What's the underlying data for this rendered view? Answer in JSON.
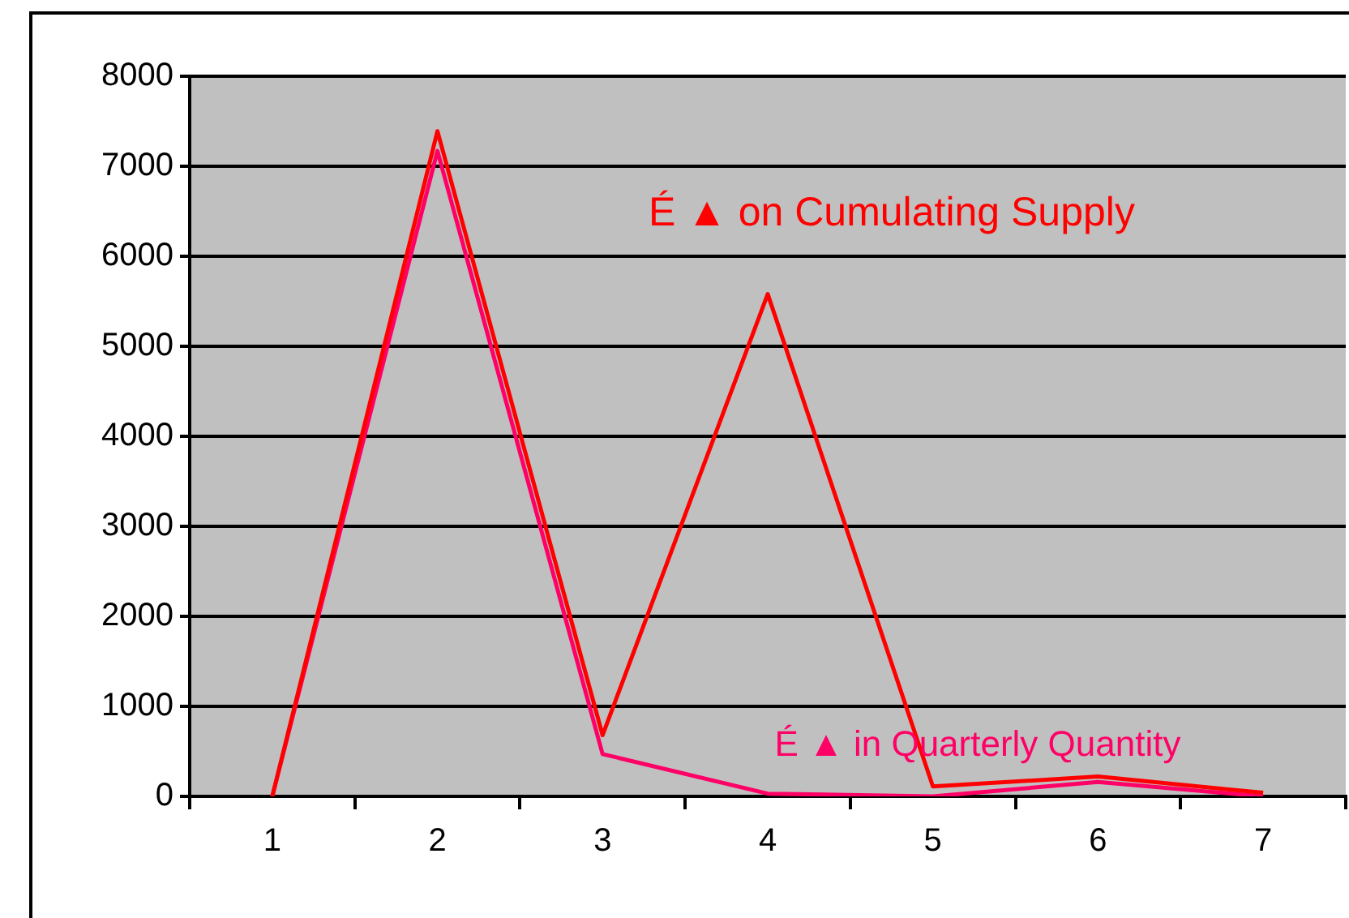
{
  "chart_data": {
    "type": "line",
    "categories": [
      "1",
      "2",
      "3",
      "4",
      "5",
      "6",
      "7"
    ],
    "series": [
      {
        "name": "É ▲ on Cumulating Supply",
        "color": "#ff0000",
        "values": [
          0,
          7390,
          680,
          5580,
          110,
          220,
          40
        ]
      },
      {
        "name": "É ▲ in Quarterly Quantity",
        "color": "#ff0066",
        "values": [
          0,
          7170,
          470,
          30,
          0,
          160,
          0
        ]
      }
    ],
    "ylim": [
      0,
      8000
    ],
    "yticks": [
      0,
      1000,
      2000,
      3000,
      4000,
      5000,
      6000,
      7000,
      8000
    ],
    "grid": "y",
    "legend": false,
    "marker": "none",
    "line_style": "solid"
  }
}
